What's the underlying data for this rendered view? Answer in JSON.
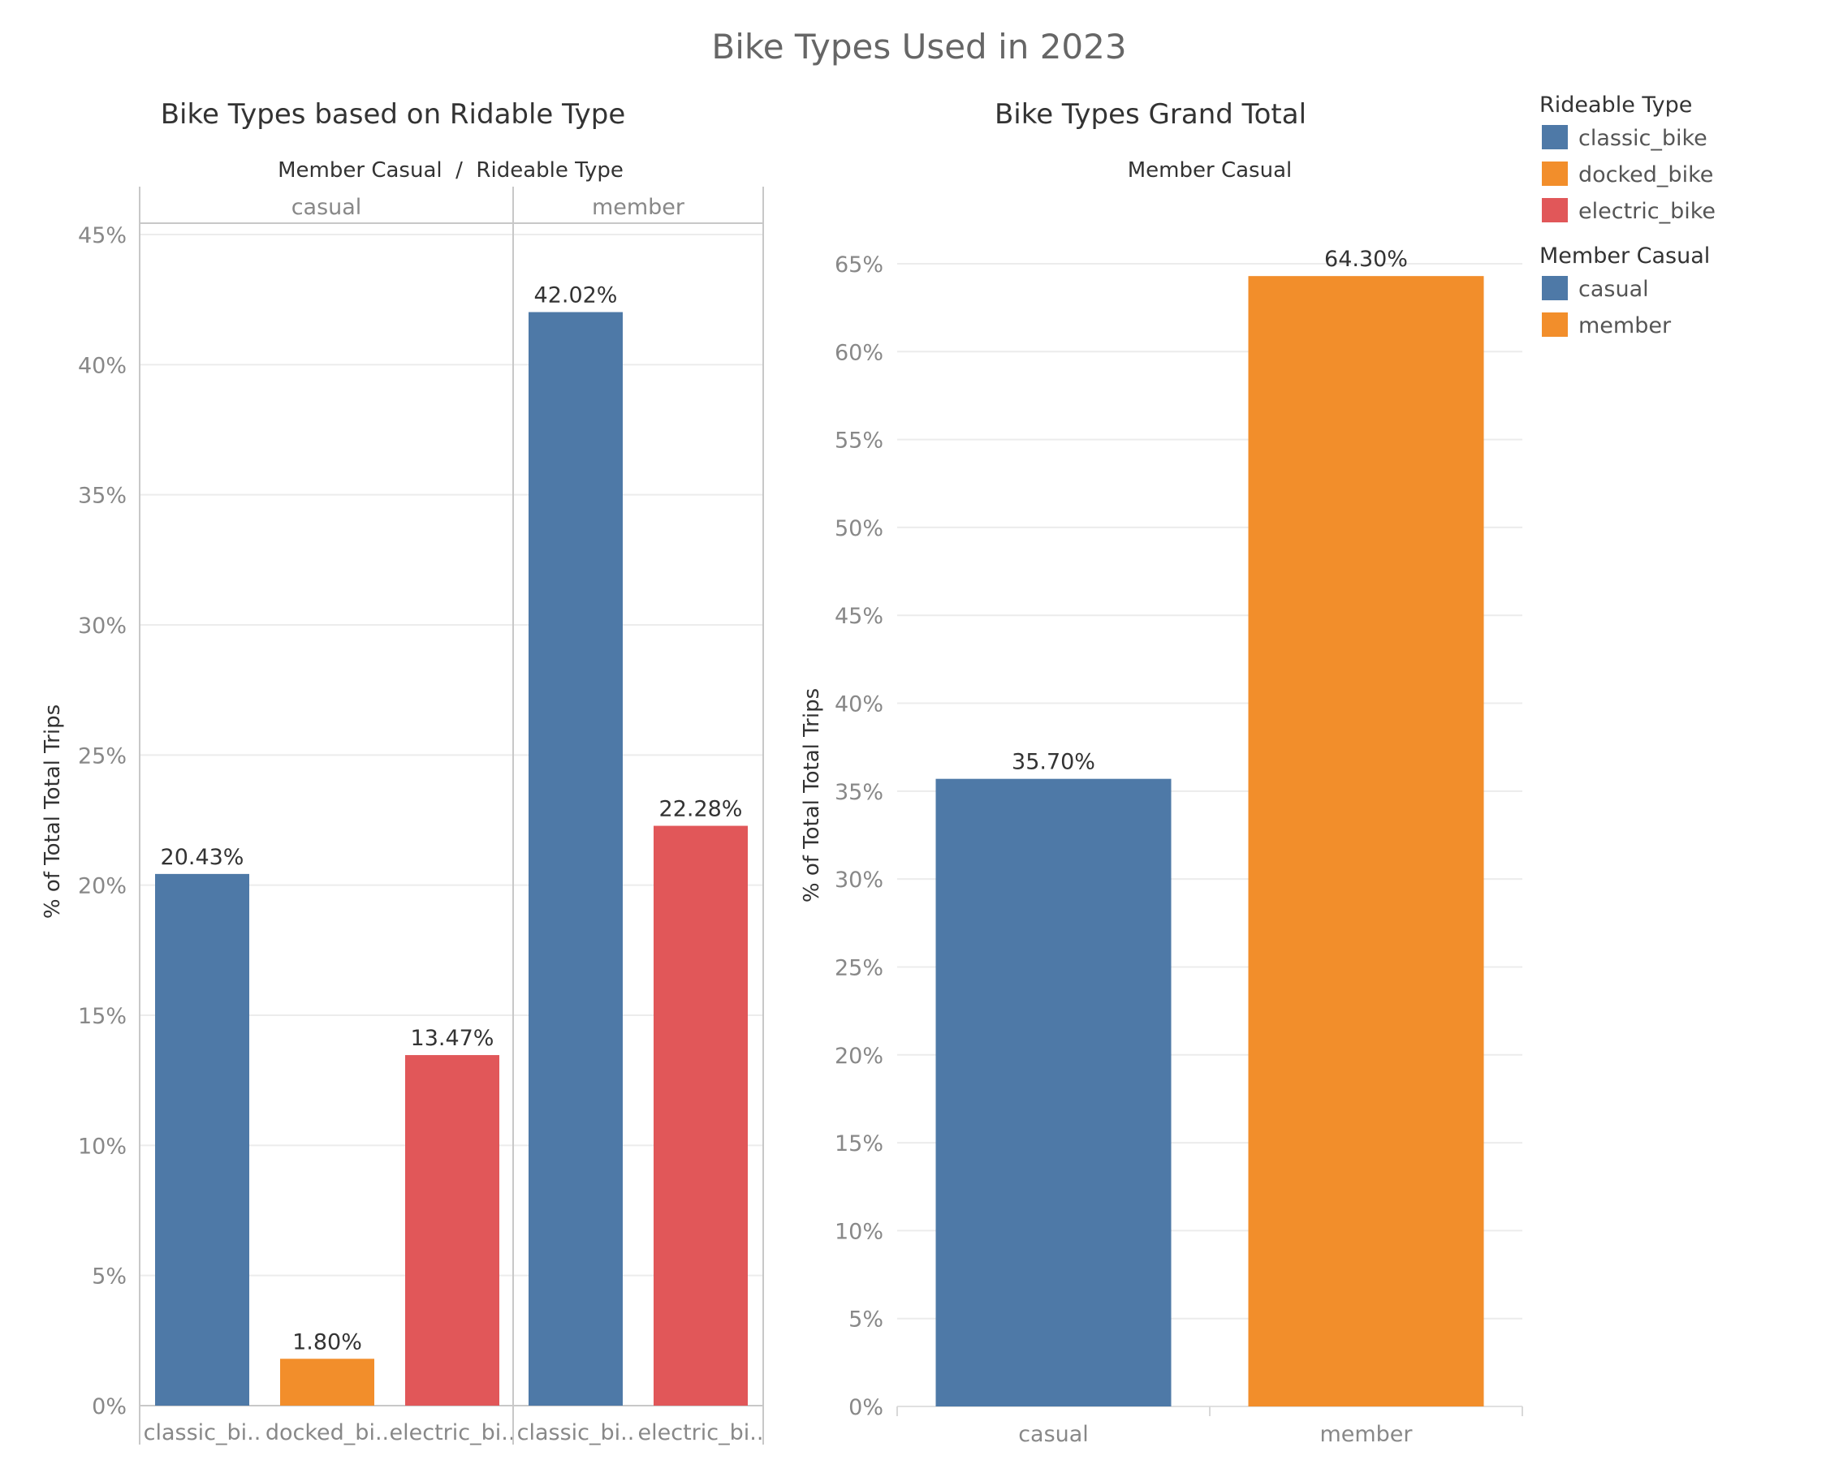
{
  "title": "Bike Types Used in 2023",
  "colors": {
    "classic_bike": "#4e79a7",
    "docked_bike": "#f28e2b",
    "electric_bike": "#e15759",
    "casual": "#4e79a7",
    "member": "#f28e2b"
  },
  "chart_data": [
    {
      "type": "bar",
      "title": "Bike Types based on Ridable Type",
      "header": "Member Casual  /  Rideable Type",
      "ylabel": "% of Total Total Trips",
      "ylim": [
        0,
        45
      ],
      "yticks": [
        "0%",
        "5%",
        "10%",
        "15%",
        "20%",
        "25%",
        "30%",
        "35%",
        "40%",
        "45%"
      ],
      "panes": [
        {
          "label": "casual",
          "bars": [
            {
              "category": "classic_bi..",
              "type": "classic_bike",
              "value": 20.43,
              "label": "20.43%"
            },
            {
              "category": "docked_bi..",
              "type": "docked_bike",
              "value": 1.8,
              "label": "1.80%"
            },
            {
              "category": "electric_bi..",
              "type": "electric_bike",
              "value": 13.47,
              "label": "13.47%"
            }
          ]
        },
        {
          "label": "member",
          "bars": [
            {
              "category": "classic_bi..",
              "type": "classic_bike",
              "value": 42.02,
              "label": "42.02%"
            },
            {
              "category": "electric_bi..",
              "type": "electric_bike",
              "value": 22.28,
              "label": "22.28%"
            }
          ]
        }
      ]
    },
    {
      "type": "bar",
      "title": "Bike Types Grand Total",
      "header": "Member Casual",
      "ylabel": "% of Total Total Trips",
      "ylim": [
        0,
        65
      ],
      "yticks": [
        "0%",
        "5%",
        "10%",
        "15%",
        "20%",
        "25%",
        "30%",
        "35%",
        "40%",
        "45%",
        "50%",
        "55%",
        "60%",
        "65%"
      ],
      "bars": [
        {
          "category": "casual",
          "type": "casual",
          "value": 35.7,
          "label": "35.70%"
        },
        {
          "category": "member",
          "type": "member",
          "value": 64.3,
          "label": "64.30%"
        }
      ]
    }
  ],
  "legend": [
    {
      "title": "Rideable Type",
      "items": [
        {
          "label": "classic_bike",
          "key": "classic_bike"
        },
        {
          "label": "docked_bike",
          "key": "docked_bike"
        },
        {
          "label": "electric_bike",
          "key": "electric_bike"
        }
      ]
    },
    {
      "title": "Member Casual",
      "items": [
        {
          "label": "casual",
          "key": "casual"
        },
        {
          "label": "member",
          "key": "member"
        }
      ]
    }
  ]
}
